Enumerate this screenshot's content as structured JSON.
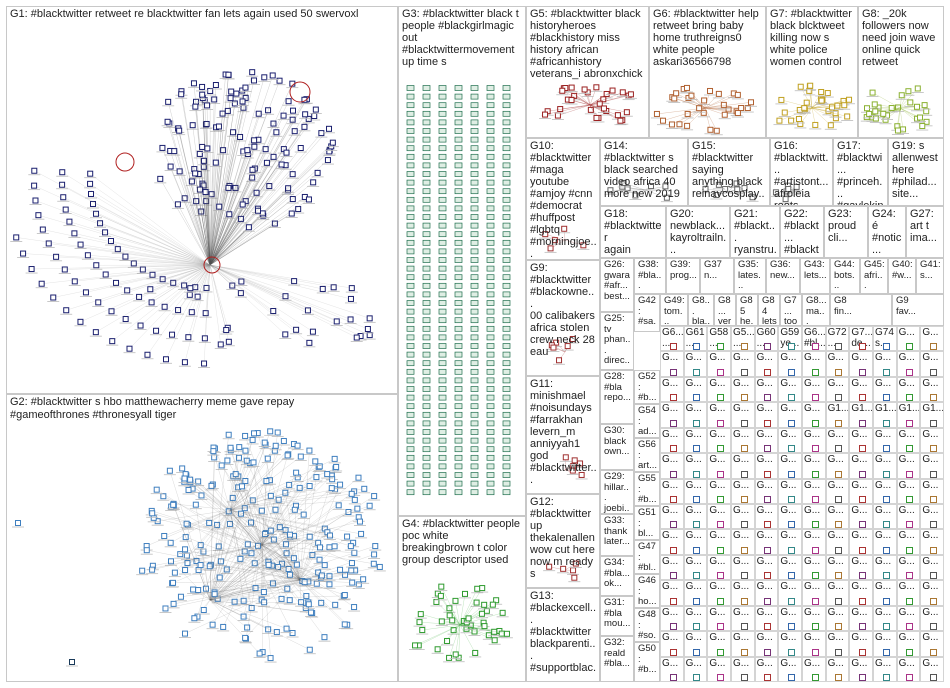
{
  "groups": [
    {
      "id": "G1",
      "label": "G1: #blacktwitter retweet re blacktwitter fan lets again used 50 swervoxl",
      "color": "#1a1f6e"
    },
    {
      "id": "G2",
      "label": "G2: #blacktwitter s hbo matthewacherry meme gave repay\n#gameofthrones #thronesyall tiger",
      "color": "#3f7fbf"
    },
    {
      "id": "G3",
      "label": "G3: #blacktwitter black t\npeople #blackgirlmagic\nout\n#blacktwittermovement\nup time s",
      "color": "#1e6e4e"
    },
    {
      "id": "G4",
      "label": "G4: #blacktwitter people\npoc white\nbreakingbrown t color\ngroup descriptor used",
      "color": "#2e9a2e"
    },
    {
      "id": "G5",
      "label": "G5: #blacktwitter black\nhistoryheroes\n#blackhistory miss\nhistory african\n#africanhistory\nveterans_i abronxchick",
      "color": "#9a2020"
    },
    {
      "id": "G6",
      "label": "G6: #blacktwitter help\nretweet bring baby\nhome truthreigns0\nwhite people\naskari36566798",
      "color": "#b06030"
    },
    {
      "id": "G7",
      "label": "G7: #blacktwitter\nblack blcktweet\nkilling now s\nwhite police\nwomen control",
      "color": "#c0a020"
    },
    {
      "id": "G8",
      "label": "G8: _20k\nfollowers now\nneed join wave\nonline quick\nretweet",
      "color": "#8ab030"
    },
    {
      "id": "G9",
      "label": "G9:\n#blacktwitter\n#blackowne...\n00 calibakers\nafrica stolen\ncrew neck 28\neau",
      "color": "#a03030"
    },
    {
      "id": "G10",
      "label": "G10:\n#blacktwitter\n#maga\nyoutube\n#amjoy #cnn\n#democrat\n#huffpost\n#lgbtq\n#morningjoe...",
      "color": "#a03030"
    },
    {
      "id": "G11",
      "label": "G11:\nminishmael\n#noisundays\n#farrakhan\nlevern_m\nanniyyah1\ngod\n#blacktwitter...",
      "color": "#a03030"
    },
    {
      "id": "G12",
      "label": "G12:\n#blacktwitter\nup\nthekalenallen\nwow cut here\nnow m ready\ns",
      "color": "#a03030"
    },
    {
      "id": "G13",
      "label": "G13:\n#blackexcell...\n#blacktwitter\nblackparenti...\n#supportblac...\nblack...",
      "color": "#a03030"
    },
    {
      "id": "G14",
      "label": "G14:\n#blacktwitter s\nblack searched\nvideo africa 40\nmore new 2019",
      "color": "#555"
    },
    {
      "id": "G15",
      "label": "G15:\n#blacktwitter\nsaying\nanything black\nreinavcosplay...",
      "color": "#555"
    },
    {
      "id": "G16",
      "label": "G16:\n#blacktwitt...\n#artistont...\nafroleia\nroots...",
      "color": "#555"
    },
    {
      "id": "G17",
      "label": "G17:\n#blacktwi...\n#princeh...\n#gayleking\nflint...",
      "color": "#555"
    },
    {
      "id": "G19",
      "label": "G19: s\nallenwest\nhere\n#philad...\nsite...",
      "color": "#555"
    },
    {
      "id": "G18",
      "label": "G18:\n#blacktwitter\nagain grits...",
      "color": "#555"
    },
    {
      "id": "G20",
      "label": "G20:\nnewblack...\nkayroltrailn...",
      "color": "#555"
    },
    {
      "id": "G21",
      "label": "G21:\n#blackt...\nryanstru...",
      "color": "#555"
    },
    {
      "id": "G22",
      "label": "G22:\n#blackt...\n#blackt...",
      "color": "#555"
    },
    {
      "id": "G23",
      "label": "G23:\nproud\ncli...",
      "color": "#555"
    },
    {
      "id": "G24",
      "label": "G24: é\n#notic...\nt come...",
      "color": "#555"
    },
    {
      "id": "G27",
      "label": "G27:\nart t\nima...",
      "color": "#555"
    }
  ],
  "small_groups": [
    {
      "id": "G26",
      "label": "G26:\ngwara\n#afr...\nbest..."
    },
    {
      "id": "G38",
      "label": "G38:\n#bla..."
    },
    {
      "id": "G39",
      "label": "G39:\nprog..."
    },
    {
      "id": "G37",
      "label": "G37\nn..."
    },
    {
      "id": "G35",
      "label": "G35:\nlates..."
    },
    {
      "id": "G36",
      "label": "G36:\nnew..."
    },
    {
      "id": "G43",
      "label": "G43:\nlets..."
    },
    {
      "id": "G44",
      "label": "G44:\nbots..."
    },
    {
      "id": "G45",
      "label": "G45:\nafri..."
    },
    {
      "id": "G40",
      "label": "G40:\n#w..."
    },
    {
      "id": "G41",
      "label": "G41:\ns..."
    },
    {
      "id": "G25",
      "label": "G25:\ntv\nphan...\ndirec..."
    },
    {
      "id": "G42",
      "label": "G42:\n#sa..."
    },
    {
      "id": "G49",
      "label": "G49:\ntom..."
    },
    {
      "id": "G8b",
      "label": "G8...\nbla..."
    },
    {
      "id": "G8c",
      "label": "G8...\nver..."
    },
    {
      "id": "G85",
      "label": "G85\nhe..."
    },
    {
      "id": "G84",
      "label": "G84\nlets..."
    },
    {
      "id": "G7b",
      "label": "G7...\ntoo"
    },
    {
      "id": "G8d",
      "label": "G8...\nma..."
    },
    {
      "id": "G8e",
      "label": "G8\nfin..."
    },
    {
      "id": "G9b",
      "label": "G9\nfav..."
    },
    {
      "id": "G28",
      "label": "G28:\n#bla\nrepo..."
    },
    {
      "id": "G52",
      "label": "G52:\n#b..."
    },
    {
      "id": "G54",
      "label": "G54:\nad..."
    },
    {
      "id": "G30",
      "label": "G30:\nblack\nown..."
    },
    {
      "id": "G56",
      "label": "G56:\nart..."
    },
    {
      "id": "G29",
      "label": "G29:\nhillar...\njoebi..."
    },
    {
      "id": "G55",
      "label": "G55:\n#b..."
    },
    {
      "id": "G51",
      "label": "G51:\nbl..."
    },
    {
      "id": "G33",
      "label": "G33:\nthank\nlater..."
    },
    {
      "id": "G47",
      "label": "G47:\n#bl..."
    },
    {
      "id": "G34",
      "label": "G34:\n#bla...\nok..."
    },
    {
      "id": "G46",
      "label": "G46:\nho..."
    },
    {
      "id": "G31",
      "label": "G31:\n#bla\nmou..."
    },
    {
      "id": "G48",
      "label": "G48:\n#so..."
    },
    {
      "id": "G32",
      "label": "G32:\nreald\n#bla..."
    },
    {
      "id": "G50",
      "label": "G50:\n#b..."
    }
  ],
  "mini_row": [
    "G6...",
    "G61",
    "G58",
    "G5...",
    "G60",
    "G59",
    "G6...",
    "G72",
    "G7...",
    "G74"
  ],
  "mini_row_sub": [
    "...",
    "...",
    "...",
    "...",
    "...",
    "ye...",
    "#bl...",
    "...",
    "de...",
    "s..."
  ],
  "grid_labels": [
    "G...",
    "G1...",
    "G1...",
    "G1...",
    "G1...",
    "G1..."
  ],
  "corner_label": "G2..."
}
